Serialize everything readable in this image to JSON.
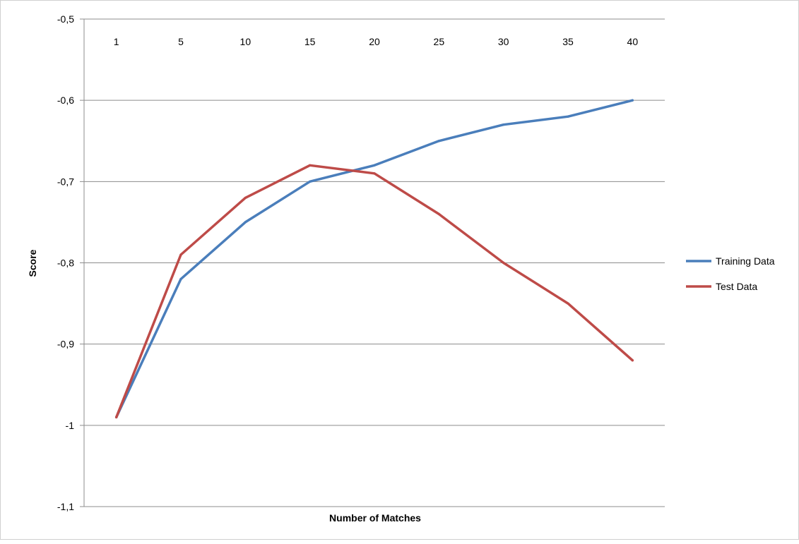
{
  "chart_data": {
    "type": "line",
    "title": "",
    "xlabel": "Number of Matches",
    "ylabel": "Score",
    "categories": [
      "1",
      "5",
      "10",
      "15",
      "20",
      "25",
      "30",
      "35",
      "40"
    ],
    "y_tick_labels": [
      "-0,5",
      "-0,6",
      "-0,7",
      "-0,8",
      "-0,9",
      "-1",
      "-1,1"
    ],
    "y_ticks": [
      -0.5,
      -0.6,
      -0.7,
      -0.8,
      -0.9,
      -1.0,
      -1.1
    ],
    "ylim": [
      -1.1,
      -0.5
    ],
    "x_axis_position": "top",
    "grid": "horizontal",
    "legend_position": "right",
    "series": [
      {
        "name": "Training Data",
        "color": "#4a7ebb",
        "values": [
          -0.99,
          -0.82,
          -0.75,
          -0.7,
          -0.68,
          -0.65,
          -0.63,
          -0.62,
          -0.6
        ]
      },
      {
        "name": "Test Data",
        "color": "#be4b48",
        "values": [
          -0.99,
          -0.79,
          -0.72,
          -0.68,
          -0.69,
          -0.74,
          -0.8,
          -0.85,
          -0.92
        ]
      }
    ]
  }
}
